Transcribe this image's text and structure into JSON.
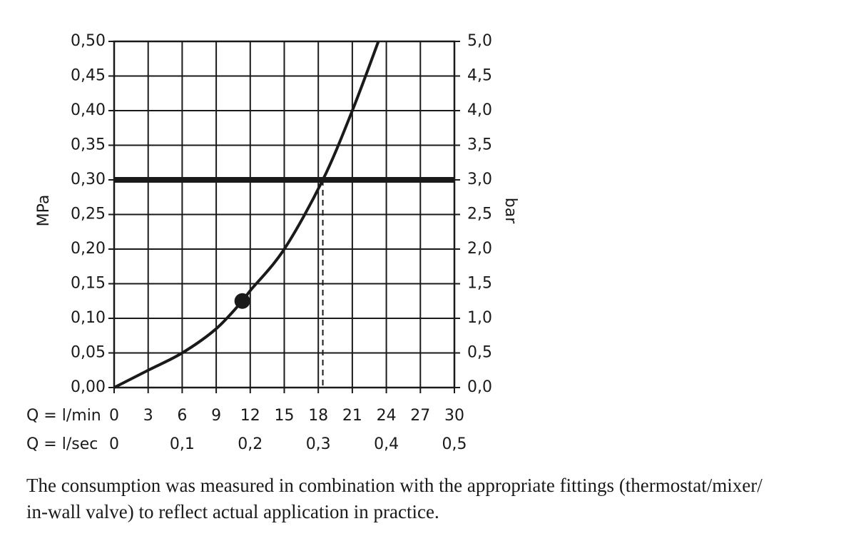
{
  "chart_data": {
    "type": "line",
    "ylabel": "MPa",
    "y2label": "bar",
    "xlabel": "Q = l/min",
    "x2label": "Q = l/sec",
    "x": [
      0,
      3,
      6,
      9,
      11.3,
      12,
      15,
      18.4,
      21,
      23.3
    ],
    "series": [
      {
        "color": "#1a1a1a",
        "values": [
          0,
          0.025,
          0.05,
          0.085,
          0.125,
          0.14,
          0.2,
          0.3,
          0.4,
          0.5
        ]
      }
    ],
    "xlim": [
      0,
      30
    ],
    "xticks": [
      0,
      3,
      6,
      9,
      12,
      15,
      18,
      21,
      24,
      27,
      30
    ],
    "x2lim": [
      0,
      0.5
    ],
    "x2ticks": [
      {
        "value": 0,
        "label": "0"
      },
      {
        "value": 0.1,
        "label": "0,1"
      },
      {
        "value": 0.2,
        "label": "0,2"
      },
      {
        "value": 0.3,
        "label": "0,3"
      },
      {
        "value": 0.4,
        "label": "0,4"
      },
      {
        "value": 0.5,
        "label": "0,5"
      }
    ],
    "ylim": [
      0,
      0.5
    ],
    "yticks": [
      {
        "value": 0,
        "label": "0,00"
      },
      {
        "value": 0.05,
        "label": "0,05"
      },
      {
        "value": 0.1,
        "label": "0,10"
      },
      {
        "value": 0.15,
        "label": "0,15"
      },
      {
        "value": 0.2,
        "label": "0,20"
      },
      {
        "value": 0.25,
        "label": "0,25"
      },
      {
        "value": 0.3,
        "label": "0,30"
      },
      {
        "value": 0.35,
        "label": "0,35"
      },
      {
        "value": 0.4,
        "label": "0,40"
      },
      {
        "value": 0.45,
        "label": "0,45"
      },
      {
        "value": 0.5,
        "label": "0,50"
      }
    ],
    "y2lim": [
      0,
      5
    ],
    "y2ticks": [
      {
        "value": 0,
        "label": "0,0"
      },
      {
        "value": 0.5,
        "label": "0,5"
      },
      {
        "value": 1,
        "label": "1,0"
      },
      {
        "value": 1.5,
        "label": "1,5"
      },
      {
        "value": 2,
        "label": "2,0"
      },
      {
        "value": 2.5,
        "label": "2,5"
      },
      {
        "value": 3,
        "label": "3,0"
      },
      {
        "value": 3.5,
        "label": "3,5"
      },
      {
        "value": 4,
        "label": "4,0"
      },
      {
        "value": 4.5,
        "label": "4,5"
      },
      {
        "value": 5,
        "label": "5,0"
      }
    ],
    "grid": true,
    "hline": 0.3,
    "vline": 18.4,
    "marker": {
      "x": 11.3,
      "y": 0.125
    },
    "note": [
      "The consumption was measured in combination with the appropriate fittings (thermostat/mixer/",
      "in-wall valve) to reflect actual application in practice."
    ]
  }
}
